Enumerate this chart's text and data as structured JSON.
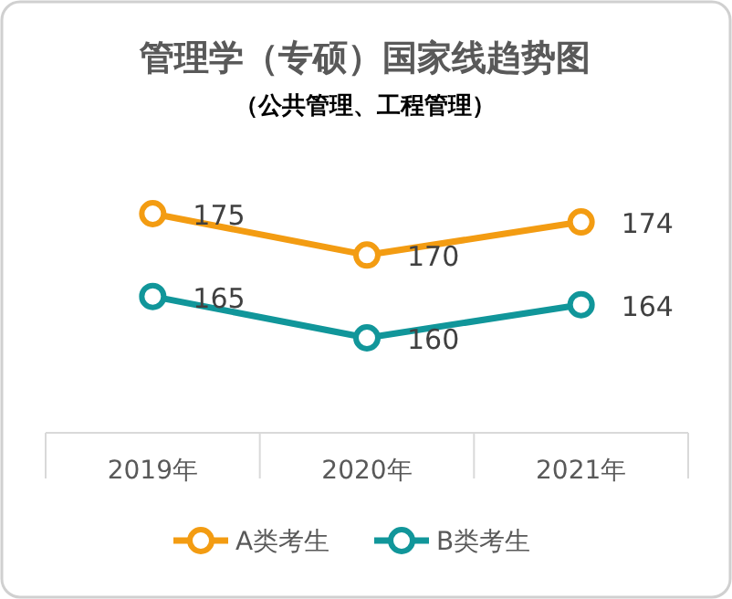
{
  "chart_data": {
    "type": "line",
    "title": "管理学（专硕）国家线趋势图",
    "subtitle": "（公共管理、工程管理）",
    "categories": [
      "2019年",
      "2020年",
      "2021年"
    ],
    "series": [
      {
        "name": "A类考生",
        "color": "#f39c12",
        "values": [
          175,
          170,
          174
        ]
      },
      {
        "name": "B类考生",
        "color": "#11969a",
        "values": [
          165,
          160,
          164
        ]
      }
    ],
    "data_labels": true,
    "marker": "circle",
    "legend": "bottom"
  }
}
